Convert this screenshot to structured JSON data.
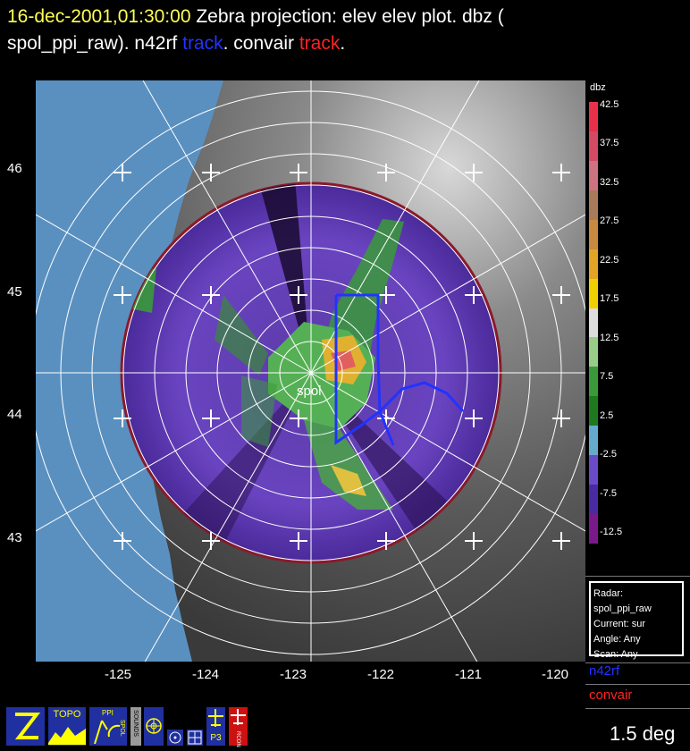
{
  "header": {
    "time": "16-dec-2001,01:30:00",
    "line1_rest": "Zebra projection: elev elev  plot.  dbz (",
    "line2_start": "spol_ppi_raw).   n42rf ",
    "track1": "track",
    "line2_mid": ".   convair ",
    "track2": "track",
    "line2_end": "."
  },
  "axes": {
    "lat_labels": [
      "46",
      "45",
      "44",
      "43"
    ],
    "lon_labels": [
      "-125",
      "-124",
      "-123",
      "-122",
      "-121",
      "-120"
    ]
  },
  "radar_label": "spol",
  "colorbar": {
    "title": "dbz",
    "ticks": [
      "42.5",
      "37.5",
      "32.5",
      "27.5",
      "22.5",
      "17.5",
      "12.5",
      "7.5",
      "2.5",
      "-2.5",
      "-7.5",
      "-12.5"
    ],
    "colors": [
      "#e8304a",
      "#d24a64",
      "#cc7280",
      "#a97a5a",
      "#c88a3e",
      "#e2a424",
      "#f0d000",
      "#dddddd",
      "#99cc88",
      "#3a9a3a",
      "#1f7a1f",
      "#66aacc",
      "#6a4ac8",
      "#4a2aa0",
      "#7a1a8a"
    ]
  },
  "info": {
    "radar": "Radar: spol_ppi_raw",
    "current": "Current: sur",
    "angle": "Angle: Any",
    "scan": "Scan: Any"
  },
  "legend": {
    "n42rf": "n42rf",
    "n42rf_color": "#2233ff",
    "convair": "convair",
    "convair_color": "#ff2222"
  },
  "elevation": "1.5 deg",
  "toolbar": {
    "topo": "TOPO",
    "spol": "SPOL",
    "ppi": "PPI",
    "sounds": "SOUNDS",
    "p3": "P3",
    "rcon": "RCON"
  }
}
